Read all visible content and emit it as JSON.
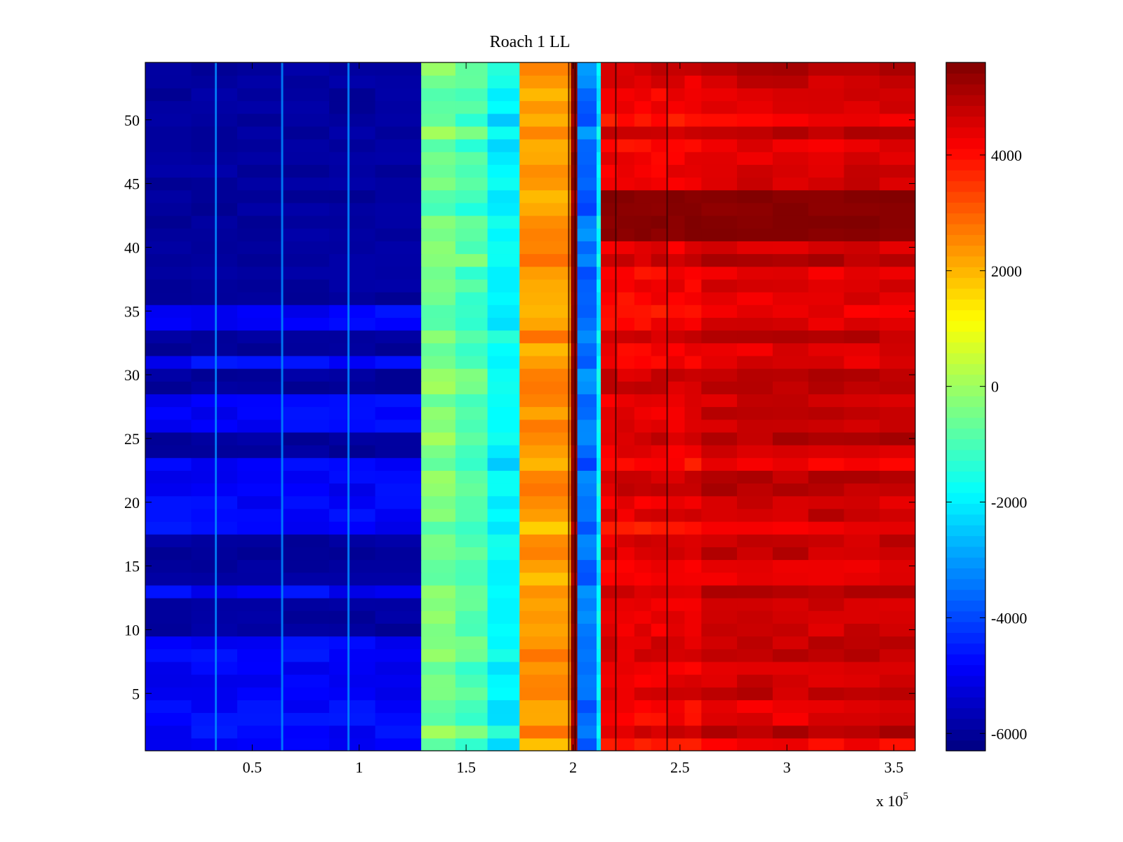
{
  "chart_data": {
    "type": "heatmap",
    "title": "Roach 1 LL",
    "xlabel": "",
    "ylabel": "",
    "x_multiplier_label": {
      "base": "x 10",
      "exponent": "5"
    },
    "xlim": [
      0.0,
      3.6
    ],
    "ylim": [
      0.5,
      54.5
    ],
    "x_ticks": [
      0.5,
      1,
      1.5,
      2,
      2.5,
      3,
      3.5
    ],
    "x_tick_labels": [
      "0.5",
      "1",
      "1.5",
      "2",
      "2.5",
      "3",
      "3.5"
    ],
    "y_ticks": [
      5,
      10,
      15,
      20,
      25,
      30,
      35,
      40,
      45,
      50
    ],
    "y_tick_labels": [
      "5",
      "10",
      "15",
      "20",
      "25",
      "30",
      "35",
      "40",
      "45",
      "50"
    ],
    "rows": 54,
    "colormap": "jet",
    "clim": [
      -6300,
      5600
    ],
    "colorbar": {
      "ticks": [
        -6000,
        -4000,
        -2000,
        0,
        2000,
        4000
      ],
      "tick_labels": [
        "-6000",
        "-4000",
        "-2000",
        "0",
        "2000",
        "4000"
      ]
    },
    "bands": [
      {
        "x_start": 0.0,
        "x_end": 1.29,
        "value": -5700,
        "description": "low (dark blue) region"
      },
      {
        "x_start": 1.29,
        "x_end": 1.45,
        "value": -500
      },
      {
        "x_start": 1.45,
        "x_end": 1.6,
        "value": -900
      },
      {
        "x_start": 1.6,
        "x_end": 1.75,
        "value": -1900
      },
      {
        "x_start": 1.75,
        "x_end": 1.99,
        "value": 2300
      },
      {
        "x_start": 1.99,
        "x_end": 2.02,
        "value": 5500
      },
      {
        "x_start": 2.02,
        "x_end": 2.11,
        "value": -3500
      },
      {
        "x_start": 2.11,
        "x_end": 2.13,
        "value": -2000
      },
      {
        "x_start": 2.13,
        "x_end": 2.6,
        "value": 4300
      },
      {
        "x_start": 2.6,
        "x_end": 3.6,
        "value": 4600
      }
    ],
    "high_rows": {
      "rows": [
        41,
        42,
        43,
        44
      ],
      "value": 5400
    },
    "vertical_streaks_x": [
      0.33,
      0.64,
      0.95
    ],
    "dark_lines_x": [
      1.98,
      2.01,
      2.2,
      2.44
    ]
  }
}
